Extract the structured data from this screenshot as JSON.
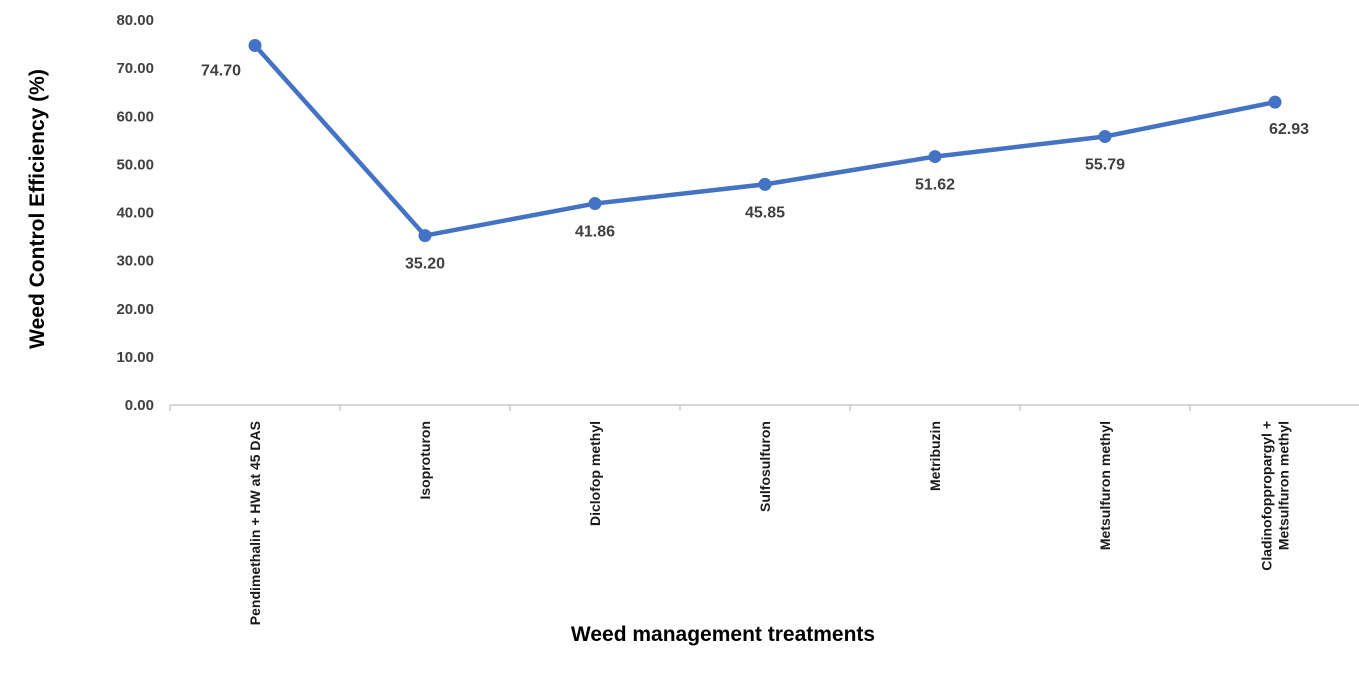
{
  "chart_data": {
    "type": "line",
    "title": "",
    "xlabel": "Weed management treatments",
    "ylabel": "Weed Control Efficiency (%)",
    "ylim": [
      0,
      80
    ],
    "yticks": [
      0,
      10,
      20,
      30,
      40,
      50,
      60,
      70,
      80
    ],
    "ytick_labels": [
      "0.00",
      "10.00",
      "20.00",
      "30.00",
      "40.00",
      "50.00",
      "60.00",
      "70.00",
      "80.00"
    ],
    "categories": [
      [
        "Pendimethalin + HW at 45 DAS"
      ],
      [
        "Isoproturon"
      ],
      [
        "Diclofop methyl"
      ],
      [
        "Sulfosulfuron"
      ],
      [
        "Metribuzin"
      ],
      [
        "Metsulfuron methyl"
      ],
      [
        "Cladinofoppropargyl +",
        "Metsulfuron methyl"
      ]
    ],
    "series": [
      {
        "values": [
          74.7,
          35.2,
          41.86,
          45.85,
          51.62,
          55.79,
          62.93
        ],
        "data_labels": [
          "74.70",
          "35.20",
          "41.86",
          "45.85",
          "51.62",
          "55.79",
          "62.93"
        ],
        "color": "#4472C4"
      }
    ],
    "grid": false,
    "legend": "none"
  }
}
